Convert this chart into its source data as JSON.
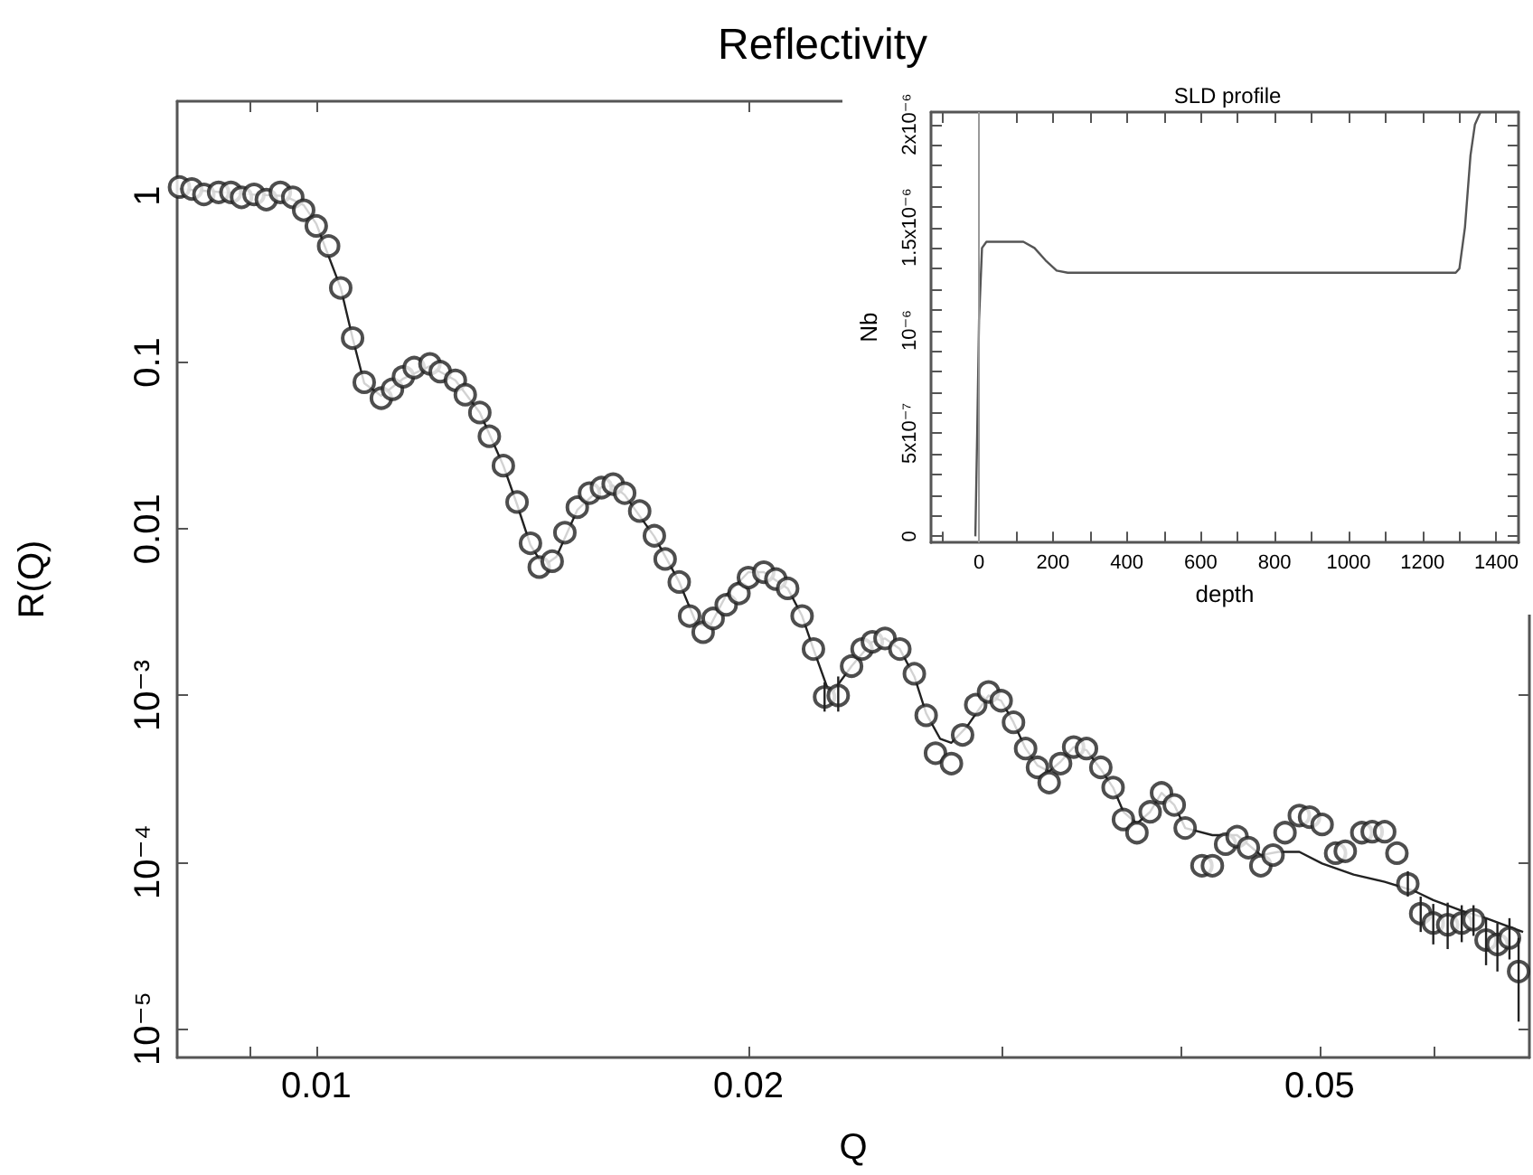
{
  "chart_data": [
    {
      "type": "scatter",
      "title": "Reflectivity",
      "xlabel": "Q",
      "ylabel": "R(Q)",
      "log": "xy",
      "xlim": [
        0.008,
        0.07
      ],
      "ylim": [
        6.7e-06,
        3.7
      ],
      "xticks": [
        {
          "value": 0.009,
          "label": null
        },
        0.01,
        0.02,
        {
          "value": 0.03,
          "label": null
        },
        {
          "value": 0.04,
          "label": null
        },
        0.05,
        {
          "value": 0.06,
          "label": null
        }
      ],
      "yticks": [
        {
          "value": 1e-05,
          "label": "10⁻⁵"
        },
        {
          "value": 0.0001,
          "label": "10⁻⁴"
        },
        {
          "value": 0.001,
          "label": "10⁻³"
        },
        0.01,
        0.1,
        1
      ],
      "series": [
        {
          "marker": "circle",
          "color": "#222222",
          "x": [
            0.00803,
            0.00819,
            0.00835,
            0.00855,
            0.00872,
            0.00887,
            0.00905,
            0.00923,
            0.00944,
            0.00963,
            0.0098,
            0.01,
            0.0102,
            0.0104,
            0.0106,
            0.0108,
            0.0111,
            0.0113,
            0.0115,
            0.0117,
            0.012,
            0.0122,
            0.0125,
            0.0127,
            0.013,
            0.0132,
            0.0135,
            0.0138,
            0.0141,
            0.0143,
            0.0146,
            0.0149,
            0.0152,
            0.0155,
            0.0158,
            0.0161,
            0.0164,
            0.0168,
            0.0172,
            0.0175,
            0.0179,
            0.0182,
            0.0186,
            0.0189,
            0.0193,
            0.0197,
            0.02,
            0.0205,
            0.0209,
            0.0213,
            0.0218,
            0.0222,
            0.0226,
            0.0231,
            0.0236,
            0.024,
            0.0244,
            0.0249,
            0.0255,
            0.0261,
            0.0266,
            0.027,
            0.0277,
            0.0282,
            0.0288,
            0.0294,
            0.03,
            0.0306,
            0.0312,
            0.0318,
            0.0324,
            0.033,
            0.0337,
            0.0344,
            0.0352,
            0.0359,
            0.0365,
            0.0373,
            0.0381,
            0.0388,
            0.0396,
            0.0403,
            0.0414,
            0.0421,
            0.043,
            0.0438,
            0.0446,
            0.0455,
            0.0464,
            0.0473,
            0.0484,
            0.0492,
            0.0502,
            0.0513,
            0.0521,
            0.0535,
            0.0544,
            0.0555,
            0.0566,
            0.0576,
            0.0588,
            0.06,
            0.0614,
            0.0628,
            0.064,
            0.0653,
            0.0665,
            0.0678,
            0.0688
          ],
          "values": [
            1.13,
            1.1,
            1.02,
            1.05,
            1.05,
            0.98,
            1.02,
            0.95,
            1.05,
            0.98,
            0.82,
            0.66,
            0.5,
            0.28,
            0.14,
            0.076,
            0.061,
            0.069,
            0.082,
            0.093,
            0.098,
            0.088,
            0.078,
            0.064,
            0.05,
            0.036,
            0.024,
            0.0145,
            0.0082,
            0.0059,
            0.0064,
            0.0095,
            0.0135,
            0.0164,
            0.0177,
            0.0186,
            0.0164,
            0.0128,
            0.0091,
            0.0066,
            0.0048,
            0.003,
            0.0024,
            0.0029,
            0.0035,
            0.0041,
            0.0051,
            0.0055,
            0.005,
            0.0044,
            0.003,
            0.0019,
            0.00098,
            0.001,
            0.0015,
            0.0019,
            0.0021,
            0.0022,
            0.0019,
            0.00135,
            0.00076,
            0.00045,
            0.00039,
            0.00058,
            0.00088,
            0.00105,
            0.00093,
            0.00069,
            0.00048,
            0.00037,
            0.0003,
            0.00039,
            0.00049,
            0.00048,
            0.00037,
            0.00028,
            0.00018,
            0.00015,
            0.0002,
            0.00026,
            0.00022,
            0.00016,
            9.5e-05,
            9.5e-05,
            0.000128,
            0.000142,
            0.000122,
            9.5e-05,
            0.00011,
            0.00015,
            0.00019,
            0.000186,
            0.000168,
            0.000113,
            0.000116,
            0.00015,
            0.000152,
            0.000152,
            0.000113,
            7.4e-05,
            4.9e-05,
            4.3e-05,
            4.2e-05,
            4.3e-05,
            4.5e-05,
            3.4e-05,
            3.2e-05,
            3.5e-05,
            2.2e-05
          ],
          "errors": [
            null,
            null,
            null,
            null,
            null,
            null,
            null,
            null,
            null,
            null,
            null,
            null,
            null,
            null,
            null,
            null,
            null,
            null,
            null,
            null,
            null,
            null,
            null,
            null,
            null,
            null,
            null,
            null,
            null,
            null,
            null,
            null,
            null,
            null,
            null,
            null,
            null,
            null,
            null,
            null,
            null,
            null,
            null,
            null,
            null,
            null,
            null,
            null,
            null,
            null,
            null,
            null,
            [
              0.0008,
              0.0012
            ],
            [
              0.0008,
              0.0013
            ],
            null,
            null,
            null,
            null,
            null,
            null,
            null,
            null,
            null,
            null,
            null,
            null,
            null,
            null,
            null,
            null,
            null,
            null,
            null,
            null,
            null,
            null,
            null,
            null,
            null,
            null,
            null,
            null,
            null,
            null,
            null,
            null,
            null,
            null,
            null,
            null,
            null,
            null,
            null,
            null,
            null,
            null,
            null,
            null,
            null,
            [
              6.2e-05,
              8.8e-05
            ],
            [
              3.8e-05,
              6.2e-05
            ],
            [
              3.2e-05,
              5.6e-05
            ],
            [
              3e-05,
              5.7e-05
            ],
            [
              3.3e-05,
              5.5e-05
            ],
            [
              3.6e-05,
              5.5e-05
            ],
            [
              2.4e-05,
              4.6e-05
            ],
            [
              2.2e-05,
              4.3e-05
            ],
            [
              2.6e-05,
              4.6e-05
            ],
            [
              1.1e-05,
              3.5e-05
            ]
          ]
        },
        {
          "type": "line",
          "marker": "none",
          "color": "#222222",
          "x": [
            0.00803,
            0.009,
            0.0095,
            0.0098,
            0.01,
            0.0104,
            0.0106,
            0.0108,
            0.0111,
            0.0115,
            0.012,
            0.0125,
            0.013,
            0.0135,
            0.0138,
            0.0141,
            0.0144,
            0.0147,
            0.0152,
            0.0158,
            0.0161,
            0.0164,
            0.0172,
            0.0179,
            0.0184,
            0.0188,
            0.0193,
            0.02,
            0.0205,
            0.0213,
            0.0218,
            0.0222,
            0.0228,
            0.0236,
            0.0244,
            0.0249,
            0.0255,
            0.0261,
            0.0266,
            0.0272,
            0.0277,
            0.0284,
            0.0294,
            0.03,
            0.0306,
            0.0312,
            0.0318,
            0.0324,
            0.033,
            0.0337,
            0.0344,
            0.0352,
            0.0359,
            0.0365,
            0.0373,
            0.0381,
            0.0388,
            0.0396,
            0.0403,
            0.0421,
            0.0438,
            0.0455,
            0.0468,
            0.0484,
            0.0502,
            0.0528,
            0.0555,
            0.0582,
            0.06,
            0.0628,
            0.0653,
            0.0693
          ],
          "values": [
            1.1,
            1.02,
            1.0,
            0.88,
            0.68,
            0.28,
            0.14,
            0.075,
            0.063,
            0.08,
            0.095,
            0.078,
            0.05,
            0.024,
            0.014,
            0.008,
            0.006,
            0.0068,
            0.013,
            0.0178,
            0.0182,
            0.016,
            0.009,
            0.0048,
            0.0027,
            0.0026,
            0.004,
            0.0055,
            0.0055,
            0.0044,
            0.003,
            0.0019,
            0.001,
            0.0015,
            0.0021,
            0.0022,
            0.0019,
            0.0013,
            0.00078,
            0.00055,
            0.00052,
            0.00065,
            0.001,
            0.00093,
            0.00069,
            0.00048,
            0.00038,
            0.00035,
            0.0004,
            0.00049,
            0.00047,
            0.00036,
            0.00028,
            0.0002,
            0.00017,
            0.0002,
            0.00026,
            0.00022,
            0.00016,
            0.000145,
            0.000145,
            0.00011,
            0.000115,
            0.000115,
            9.8e-05,
            8.4e-05,
            7.6e-05,
            6.7e-05,
            5.9e-05,
            5.1e-05,
            4.6e-05,
            3.8e-05
          ]
        }
      ]
    },
    {
      "type": "line",
      "title": "SLD profile",
      "xlabel": "depth",
      "ylabel": "Nb",
      "xlim": [
        -130,
        1460
      ],
      "ylim": [
        -3e-08,
        2.06e-06
      ],
      "xticks": [
        {
          "value": -100,
          "label": null
        },
        0,
        {
          "value": 100,
          "label": null
        },
        200,
        {
          "value": 300,
          "label": null
        },
        400,
        {
          "value": 500,
          "label": null
        },
        600,
        {
          "value": 700,
          "label": null
        },
        800,
        {
          "value": 900,
          "label": null
        },
        1000,
        {
          "value": 1100,
          "label": null
        },
        1200,
        {
          "value": 1300,
          "label": null
        },
        1400
      ],
      "yticks": [
        0,
        {
          "value": 1e-07,
          "label": null
        },
        {
          "value": 2e-07,
          "label": null
        },
        {
          "value": 3e-07,
          "label": null
        },
        {
          "value": 4e-07,
          "label": null
        },
        {
          "value": 5e-07,
          "label": "5x10⁻⁷"
        },
        {
          "value": 6e-07,
          "label": null
        },
        {
          "value": 7e-07,
          "label": null
        },
        {
          "value": 8e-07,
          "label": null
        },
        {
          "value": 9e-07,
          "label": null
        },
        {
          "value": 1e-06,
          "label": "10⁻⁶"
        },
        {
          "value": 1.1e-06,
          "label": null
        },
        {
          "value": 1.2e-06,
          "label": null
        },
        {
          "value": 1.3e-06,
          "label": null
        },
        {
          "value": 1.4e-06,
          "label": null
        },
        {
          "value": 1.5e-06,
          "label": "1.5x10⁻⁶"
        },
        {
          "value": 1.6e-06,
          "label": null
        },
        {
          "value": 1.7e-06,
          "label": null
        },
        {
          "value": 1.8e-06,
          "label": null
        },
        {
          "value": 1.9e-06,
          "label": null
        },
        {
          "value": 2e-06,
          "label": "2x10⁻⁶"
        }
      ],
      "ref_lines": [
        {
          "axis": "x",
          "value": 0,
          "color": "#999999"
        }
      ],
      "series": [
        {
          "color": "#555555",
          "x": [
            -10,
            -5,
            0,
            8,
            20,
            120,
            150,
            180,
            210,
            240,
            1290,
            1300,
            1315,
            1330,
            1342,
            1357
          ],
          "values": [
            0,
            5e-07,
            1.05e-06,
            1.4e-06,
            1.43e-06,
            1.43e-06,
            1.4e-06,
            1.34e-06,
            1.29e-06,
            1.28e-06,
            1.28e-06,
            1.3e-06,
            1.5e-06,
            1.85e-06,
            2e-06,
            2.06e-06
          ]
        }
      ]
    }
  ]
}
